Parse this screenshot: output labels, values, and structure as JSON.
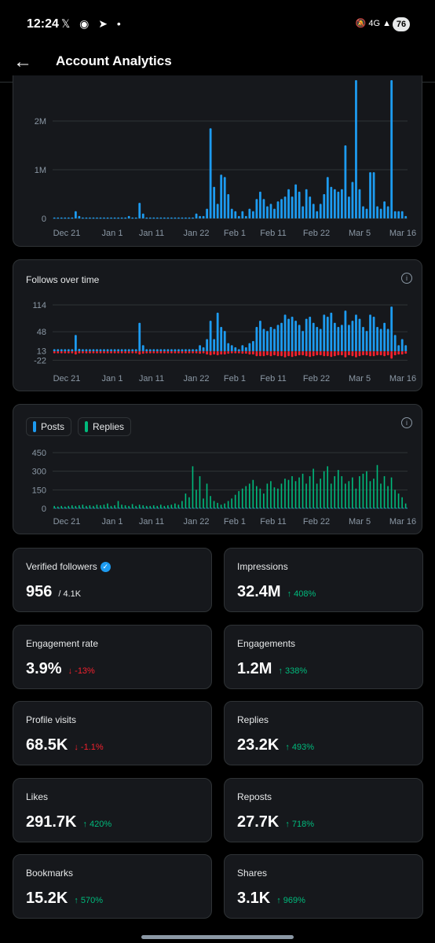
{
  "status": {
    "time": "12:24",
    "battery": "76",
    "network": "4G"
  },
  "header": {
    "title": "Account Analytics"
  },
  "x_labels": [
    "Dec 21",
    "Jan 1",
    "Jan 11",
    "Jan 22",
    "Feb 1",
    "Feb 11",
    "Feb 22",
    "Mar 5",
    "Mar 16"
  ],
  "chart_data": [
    {
      "type": "bar",
      "title": "",
      "ytick_labels": [
        "0",
        "1M",
        "2M"
      ],
      "series": [
        {
          "values": [
            0.02,
            0.02,
            0.02,
            0.02,
            0.02,
            0.02,
            0.15,
            0.05,
            0.02,
            0.02,
            0.02,
            0.02,
            0.02,
            0.02,
            0.02,
            0.02,
            0.02,
            0.02,
            0.02,
            0.02,
            0.02,
            0.05,
            0.02,
            0.02,
            0.32,
            0.1,
            0.02,
            0.02,
            0.02,
            0.02,
            0.02,
            0.02,
            0.02,
            0.02,
            0.02,
            0.02,
            0.02,
            0.02,
            0.02,
            0.02,
            0.1,
            0.05,
            0.05,
            0.2,
            1.85,
            0.65,
            0.3,
            0.9,
            0.85,
            0.5,
            0.2,
            0.15,
            0.05,
            0.15,
            0.05,
            0.2,
            0.15,
            0.4,
            0.55,
            0.4,
            0.25,
            0.3,
            0.2,
            0.35,
            0.4,
            0.45,
            0.6,
            0.45,
            0.7,
            0.55,
            0.25,
            0.6,
            0.45,
            0.3,
            0.15,
            0.3,
            0.5,
            0.85,
            0.65,
            0.6,
            0.55,
            0.6,
            1.5,
            0.45,
            0.75,
            2.9,
            0.6,
            0.25,
            0.2,
            0.95,
            0.95,
            0.25,
            0.2,
            0.35,
            0.25,
            3.2,
            0.15,
            0.15,
            0.15,
            0.05
          ]
        }
      ]
    },
    {
      "type": "bar",
      "title": "Follows over time",
      "ytick_labels": [
        "114",
        "48",
        "13",
        "-22"
      ],
      "series": [
        {
          "name": "gained",
          "values": [
            5,
            5,
            5,
            5,
            5,
            5,
            40,
            6,
            5,
            5,
            5,
            5,
            5,
            5,
            5,
            5,
            5,
            5,
            5,
            5,
            5,
            5,
            5,
            5,
            70,
            15,
            5,
            5,
            5,
            5,
            5,
            5,
            5,
            5,
            5,
            5,
            5,
            5,
            5,
            5,
            5,
            15,
            10,
            30,
            75,
            30,
            95,
            60,
            50,
            20,
            15,
            10,
            5,
            15,
            10,
            20,
            25,
            60,
            75,
            55,
            50,
            60,
            55,
            65,
            70,
            90,
            80,
            85,
            75,
            65,
            50,
            80,
            85,
            70,
            60,
            55,
            90,
            85,
            95,
            70,
            60,
            65,
            100,
            65,
            75,
            90,
            80,
            60,
            50,
            90,
            85,
            60,
            55,
            70,
            55,
            110,
            40,
            15,
            30,
            15
          ]
        },
        {
          "name": "lost",
          "values": [
            -5,
            -5,
            -5,
            -5,
            -5,
            -5,
            -8,
            -5,
            -5,
            -5,
            -5,
            -5,
            -5,
            -5,
            -5,
            -5,
            -5,
            -5,
            -5,
            -5,
            -5,
            -5,
            -5,
            -5,
            -8,
            -6,
            -5,
            -5,
            -5,
            -5,
            -5,
            -5,
            -5,
            -5,
            -5,
            -5,
            -5,
            -5,
            -5,
            -5,
            -5,
            -6,
            -5,
            -8,
            -10,
            -8,
            -10,
            -8,
            -8,
            -6,
            -5,
            -5,
            -5,
            -6,
            -6,
            -8,
            -8,
            -12,
            -12,
            -12,
            -10,
            -12,
            -10,
            -12,
            -12,
            -15,
            -12,
            -14,
            -12,
            -10,
            -10,
            -12,
            -14,
            -12,
            -10,
            -10,
            -12,
            -12,
            -14,
            -12,
            -10,
            -10,
            -15,
            -10,
            -12,
            -15,
            -12,
            -10,
            -10,
            -12,
            -12,
            -10,
            -10,
            -12,
            -10,
            -18,
            -10,
            -8,
            -8,
            -6
          ]
        }
      ]
    },
    {
      "type": "bar",
      "legend": [
        "Posts",
        "Replies"
      ],
      "ytick_labels": [
        "450",
        "300",
        "150",
        "0"
      ],
      "series": [
        {
          "name": "Posts",
          "values": [
            5,
            5,
            5,
            5,
            5,
            5,
            5,
            5,
            5,
            5,
            5,
            5,
            5,
            5,
            5,
            5,
            5,
            5,
            5,
            5,
            5,
            5,
            5,
            5,
            5,
            5,
            5,
            5,
            5,
            5,
            5,
            5,
            5,
            5,
            5,
            5,
            5,
            5,
            5,
            5,
            5,
            5,
            5,
            5,
            5,
            5,
            5,
            5,
            5,
            5,
            5,
            5,
            5,
            5,
            5,
            5,
            5,
            5,
            5,
            5,
            5,
            5,
            5,
            5,
            5,
            5,
            5,
            5,
            5,
            5,
            5,
            5,
            5,
            5,
            5,
            5,
            5,
            5,
            5,
            5,
            5,
            5,
            5,
            5,
            5,
            5,
            5,
            5,
            5,
            5,
            5,
            5,
            5,
            5,
            5,
            5,
            5,
            5,
            5,
            5
          ]
        },
        {
          "name": "Replies",
          "values": [
            20,
            15,
            20,
            15,
            20,
            25,
            20,
            25,
            30,
            20,
            25,
            20,
            30,
            25,
            30,
            40,
            20,
            25,
            60,
            30,
            25,
            20,
            35,
            20,
            30,
            25,
            20,
            20,
            25,
            20,
            30,
            20,
            25,
            30,
            40,
            30,
            60,
            120,
            90,
            340,
            150,
            260,
            80,
            200,
            100,
            60,
            45,
            30,
            40,
            60,
            80,
            110,
            140,
            160,
            180,
            200,
            230,
            180,
            160,
            120,
            200,
            220,
            170,
            160,
            200,
            240,
            230,
            260,
            220,
            250,
            280,
            200,
            260,
            320,
            200,
            240,
            300,
            340,
            200,
            260,
            310,
            260,
            200,
            220,
            250,
            160,
            260,
            280,
            300,
            220,
            240,
            350,
            200,
            260,
            180,
            250,
            150,
            120,
            90,
            40
          ]
        }
      ]
    }
  ],
  "colors": {
    "blue": "#1d9bf0",
    "red": "#f4212e",
    "green": "#00ba7c"
  },
  "stats": [
    {
      "label": "Verified followers",
      "value": "956",
      "sub": "/ 4.1K"
    },
    {
      "label": "Impressions",
      "value": "32.4M",
      "change": "↑ 408%"
    },
    {
      "label": "Engagement rate",
      "value": "3.9%",
      "change": "↓ -13%"
    },
    {
      "label": "Engagements",
      "value": "1.2M",
      "change": "↑ 338%"
    },
    {
      "label": "Profile visits",
      "value": "68.5K",
      "change": "↓ -1.1%"
    },
    {
      "label": "Replies",
      "value": "23.2K",
      "change": "↑ 493%"
    },
    {
      "label": "Likes",
      "value": "291.7K",
      "change": "↑ 420%"
    },
    {
      "label": "Reposts",
      "value": "27.7K",
      "change": "↑ 718%"
    },
    {
      "label": "Bookmarks",
      "value": "15.2K",
      "change": "↑ 570%"
    },
    {
      "label": "Shares",
      "value": "3.1K",
      "change": "↑ 969%"
    }
  ]
}
